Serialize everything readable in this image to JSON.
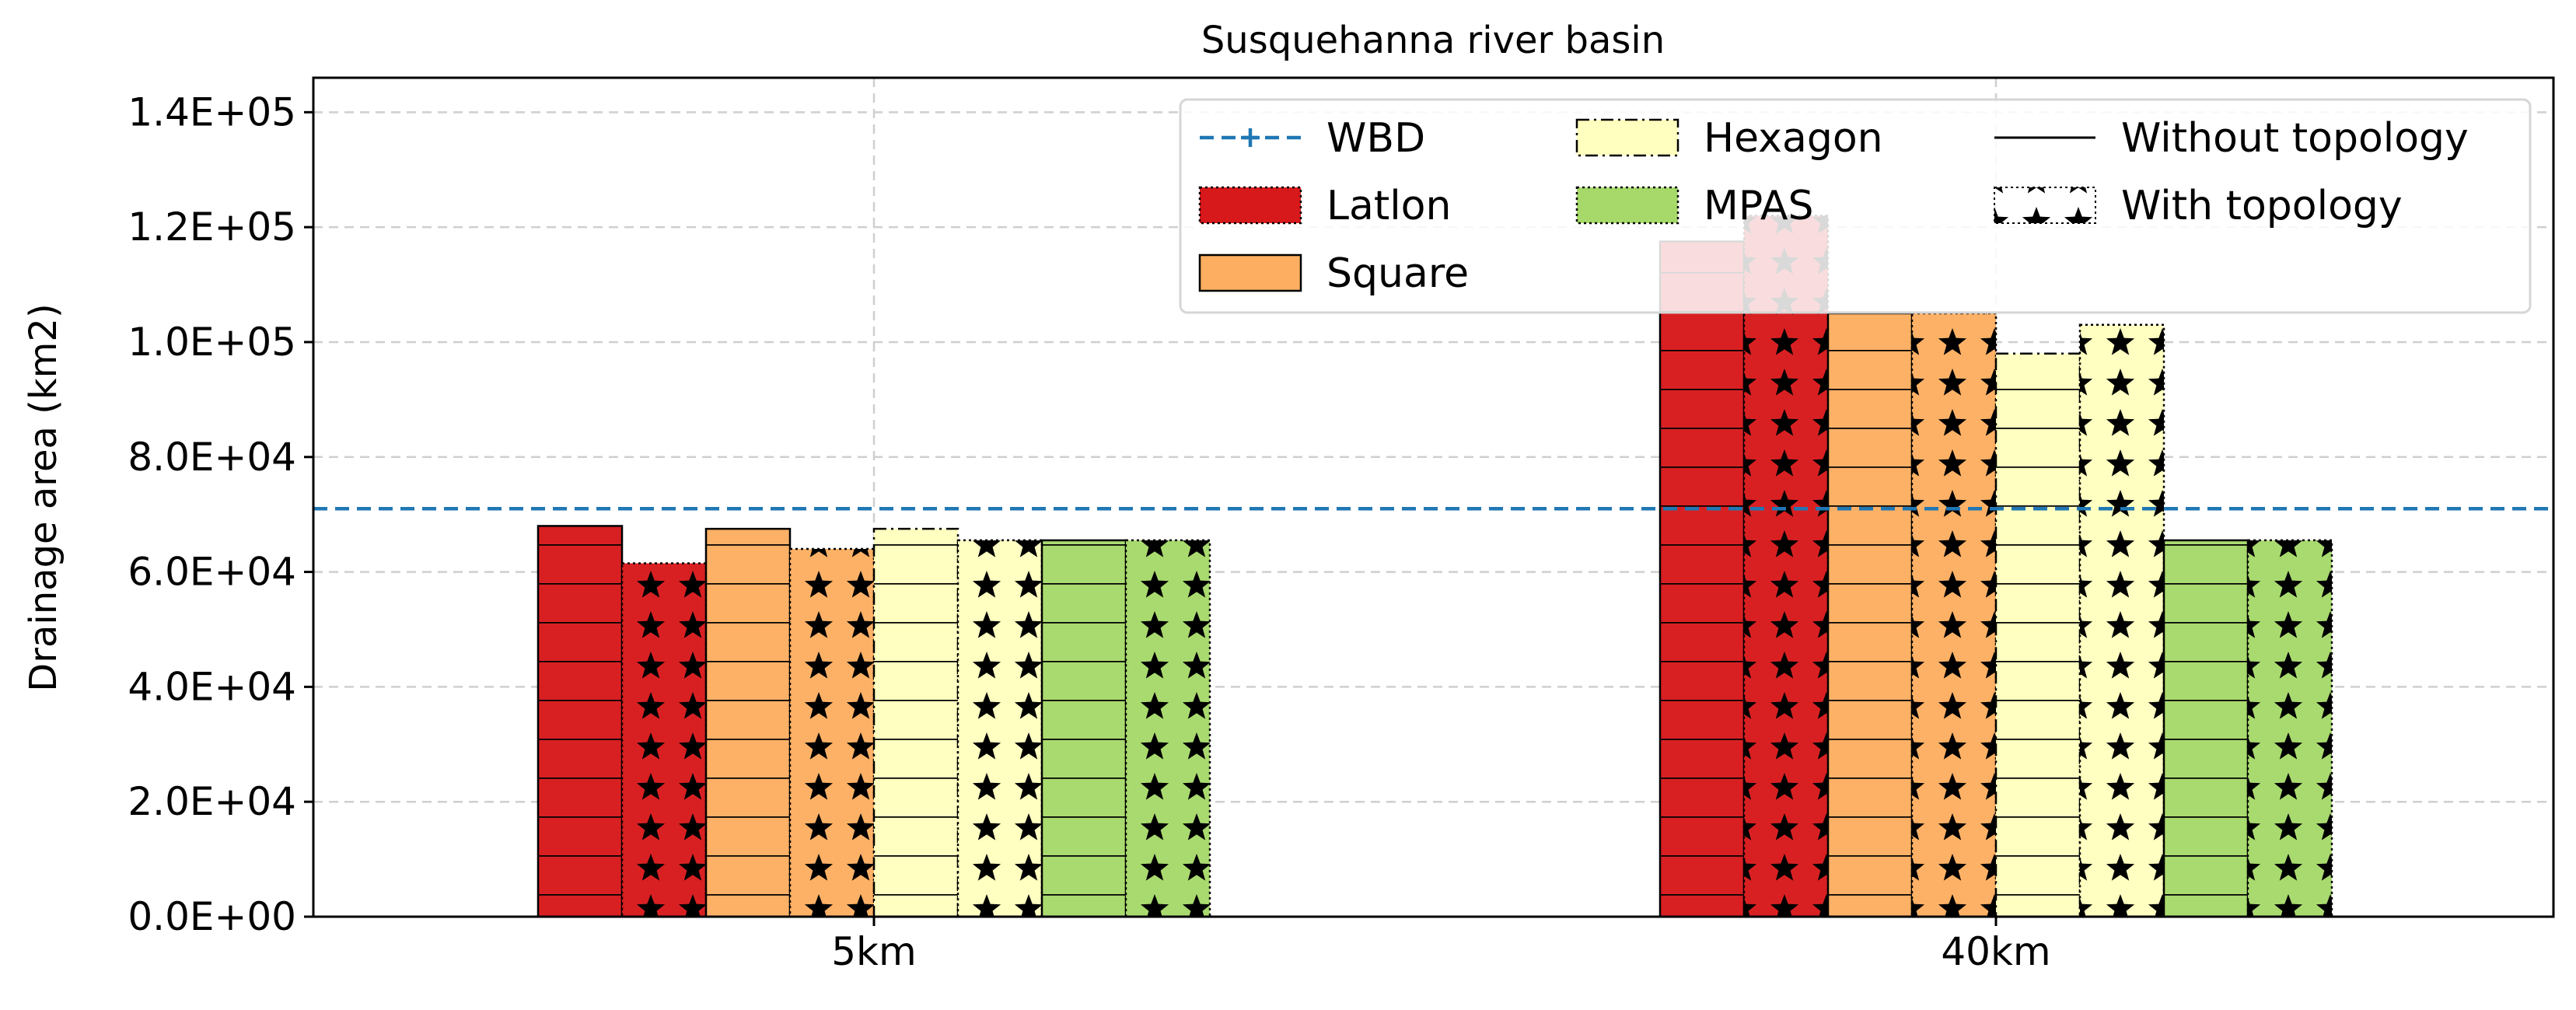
{
  "chart_data": {
    "type": "bar",
    "title": "Susquehanna river basin",
    "xlabel": "",
    "ylabel": "Drainage area (km2)",
    "categories": [
      "5km",
      "40km"
    ],
    "ylim": [
      0,
      146000
    ],
    "yticks": [
      0,
      20000,
      40000,
      60000,
      80000,
      100000,
      120000,
      140000
    ],
    "ytick_labels": [
      "0.0E+00",
      "2.0E+04",
      "4.0E+04",
      "6.0E+04",
      "8.0E+04",
      "1.0E+05",
      "1.2E+05",
      "1.4E+05"
    ],
    "grid": true,
    "legend_position": "top-right",
    "reference_line": {
      "name": "WBD",
      "value": 71000,
      "color": "#1f77b4"
    },
    "series": [
      {
        "name": "Latlon",
        "topology": "Without topology",
        "color": "#d7191c",
        "values": [
          68000,
          117500
        ]
      },
      {
        "name": "Latlon",
        "topology": "With topology",
        "color": "#d7191c",
        "values": [
          61500,
          122000
        ]
      },
      {
        "name": "Square",
        "topology": "Without topology",
        "color": "#fdae61",
        "values": [
          67500,
          105000
        ]
      },
      {
        "name": "Square",
        "topology": "With topology",
        "color": "#fdae61",
        "values": [
          64000,
          105000
        ]
      },
      {
        "name": "Hexagon",
        "topology": "Without topology",
        "color": "#ffffbf",
        "values": [
          67500,
          98000
        ]
      },
      {
        "name": "Hexagon",
        "topology": "With topology",
        "color": "#ffffbf",
        "values": [
          65500,
          103000
        ]
      },
      {
        "name": "MPAS",
        "topology": "Without topology",
        "color": "#a6d96a",
        "values": [
          65500,
          65500
        ]
      },
      {
        "name": "MPAS",
        "topology": "With topology",
        "color": "#a6d96a",
        "values": [
          65500,
          65500
        ]
      }
    ],
    "legend": [
      {
        "label": "WBD",
        "kind": "line"
      },
      {
        "label": "Latlon",
        "kind": "patch",
        "color": "#d7191c"
      },
      {
        "label": "Square",
        "kind": "patch",
        "color": "#fdae61"
      },
      {
        "label": "Hexagon",
        "kind": "patch",
        "color": "#ffffbf"
      },
      {
        "label": "MPAS",
        "kind": "patch",
        "color": "#a6d96a"
      },
      {
        "label": "Without topology",
        "kind": "hatch-line"
      },
      {
        "label": "With topology",
        "kind": "hatch-star"
      }
    ]
  }
}
